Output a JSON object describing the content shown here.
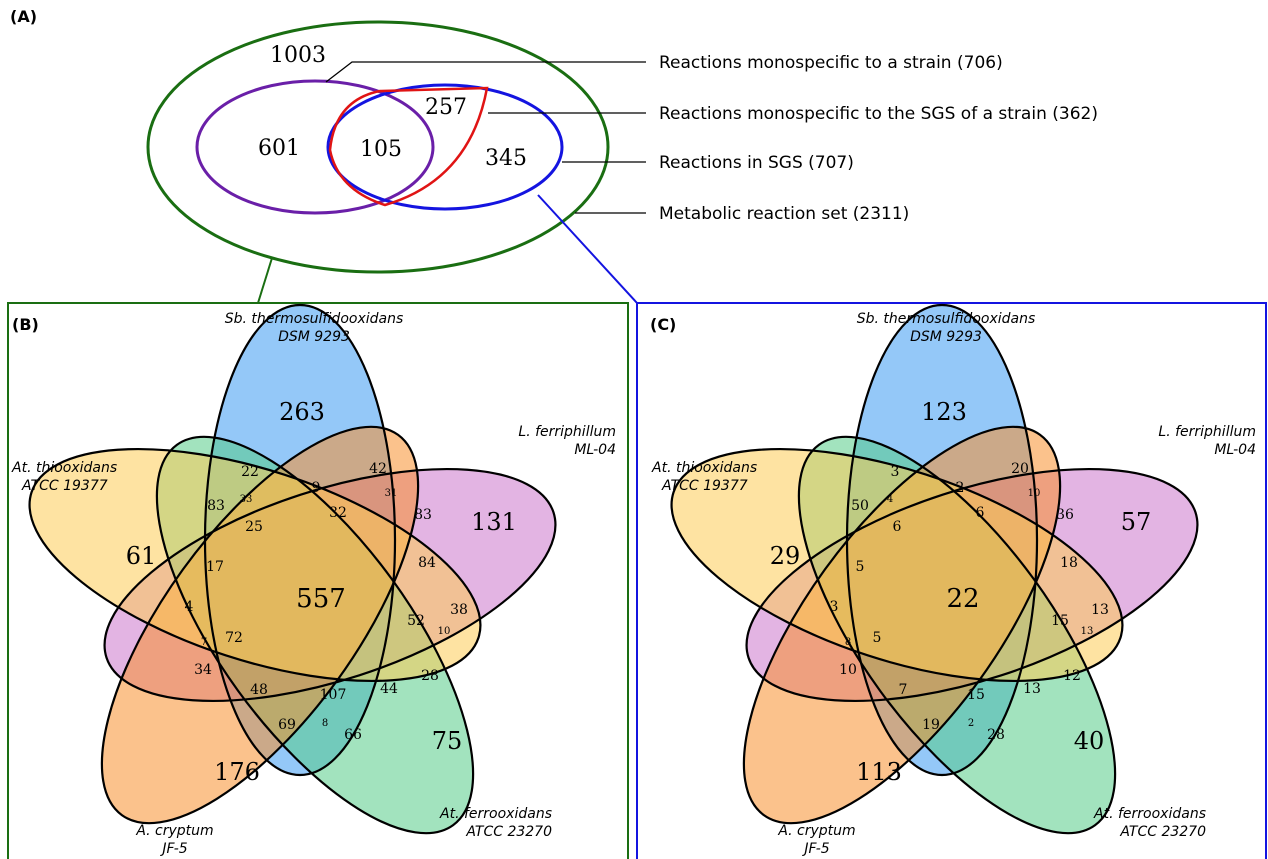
{
  "panels": {
    "a": "(A)",
    "b": "(B)",
    "c": "(C)"
  },
  "panel_a": {
    "outer_count": "1003",
    "left_count": "601",
    "overlap_count": "105",
    "red_count": "257",
    "right_count": "345",
    "labels": {
      "monospecific": "Reactions monospecific to a strain (706)",
      "monospecific_sgs": "Reactions monospecific to the SGS of a strain (362)",
      "sgs": "Reactions in SGS (707)",
      "metabolic": "Metabolic reaction set (2311)"
    },
    "colors": {
      "outer": "#1a6e12",
      "left": "#6a1fa8",
      "right": "#1414e0",
      "highlight": "#e01414"
    }
  },
  "species": {
    "sb_name": "Sb. thermosulfidooxidans",
    "sb_strain": "DSM 9293",
    "lf_name": "L. ferriphillum",
    "lf_strain": "ML-04",
    "af_name": "At. ferrooxidans",
    "af_strain": "ATCC 23270",
    "ac_name": "A. cryptum",
    "ac_strain": "JF-5",
    "at_name": "At. thiooxidans",
    "at_strain": "ATCC 19377"
  },
  "species_colors": {
    "sb": "#5aaaf5",
    "lf": "#cc77cc",
    "af": "#55cc88",
    "ac": "#f78f2e",
    "at": "#fdcc55"
  },
  "venn_b": {
    "sb_only": "263",
    "lf_only": "131",
    "af_only": "75",
    "ac_only": "176",
    "at_only": "61",
    "center": "557",
    "r1": "22",
    "r2": "42",
    "r3": "9",
    "r4": "33",
    "r5": "83",
    "r6": "31",
    "r7": "83",
    "r8": "25",
    "r9": "32",
    "r10": "17",
    "r11": "84",
    "r12": "4",
    "r13": "38",
    "r14": "52",
    "r15": "10",
    "r16": "7",
    "r17": "72",
    "r18": "34",
    "r19": "28",
    "r20": "48",
    "r21": "107",
    "r22": "44",
    "r23": "69",
    "r24": "8",
    "r25": "66"
  },
  "venn_c": {
    "sb_only": "123",
    "lf_only": "57",
    "af_only": "40",
    "ac_only": "113",
    "at_only": "29",
    "center": "22",
    "r1": "3",
    "r2": "20",
    "r3": "2",
    "r4": "4",
    "r5": "50",
    "r6": "10",
    "r7": "36",
    "r8": "6",
    "r9": "6",
    "r10": "5",
    "r11": "18",
    "r12": "3",
    "r13": "13",
    "r14": "15",
    "r15": "13",
    "r16": "8",
    "r17": "5",
    "r18": "10",
    "r19": "12",
    "r20": "7",
    "r21": "15",
    "r22": "13",
    "r23": "19",
    "r24": "2",
    "r25": "28"
  }
}
